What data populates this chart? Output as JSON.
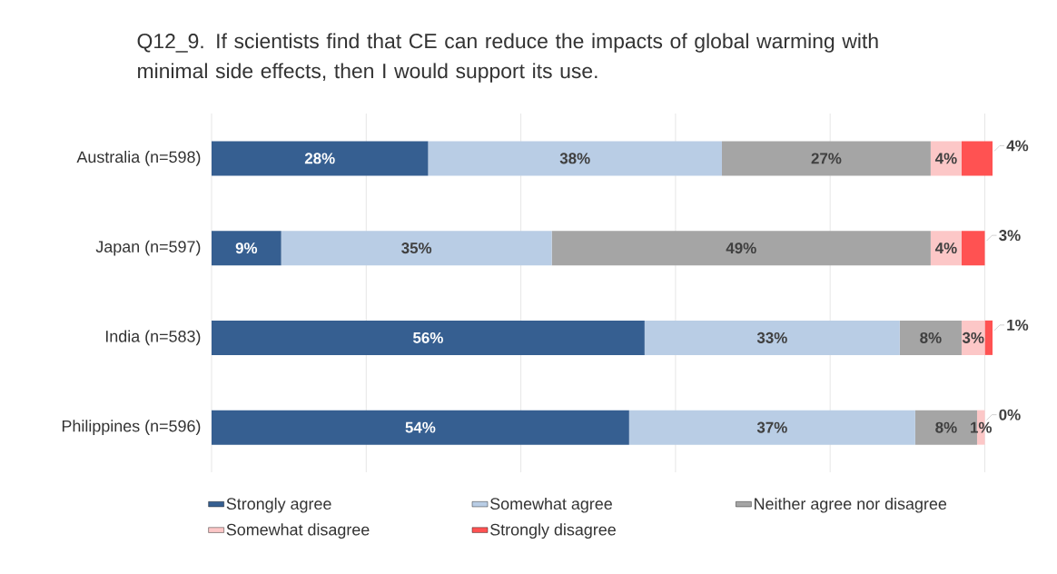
{
  "chart_data": {
    "type": "bar",
    "orientation": "horizontal",
    "stacked": true,
    "title": "Q12_9. If scientists find that CE can reduce the impacts of global warming with minimal side effects, then I would support its use.",
    "categories": [
      "Australia (n=598)",
      "Japan (n=597)",
      "India (n=583)",
      "Philippines (n=596)"
    ],
    "series": [
      {
        "name": "Strongly agree",
        "color": "#365f91",
        "values": [
          28,
          9,
          56,
          54
        ],
        "value_labels": [
          "28%",
          "9%",
          "56%",
          "54%"
        ]
      },
      {
        "name": "Somewhat agree",
        "color": "#b9cde5",
        "values": [
          38,
          35,
          33,
          37
        ],
        "value_labels": [
          "38%",
          "35%",
          "33%",
          "37%"
        ]
      },
      {
        "name": "Neither agree nor disagree",
        "color": "#a5a5a5",
        "values": [
          27,
          49,
          8,
          8
        ],
        "value_labels": [
          "27%",
          "49%",
          "8%",
          "8%"
        ]
      },
      {
        "name": "Somewhat disagree",
        "color": "#fcc7c7",
        "values": [
          4,
          4,
          3,
          1
        ],
        "value_labels": [
          "4%",
          "4%",
          "3%",
          "1%"
        ]
      },
      {
        "name": "Strongly disagree",
        "color": "#ff5252",
        "values": [
          4,
          3,
          1,
          0
        ],
        "value_labels": [
          "4%",
          "3%",
          "1%",
          "0%"
        ]
      }
    ],
    "xlim": [
      0,
      101
    ],
    "xticks": [
      {
        "value": 0,
        "label": null
      },
      {
        "value": 20,
        "label": null
      },
      {
        "value": 40,
        "label": null
      },
      {
        "value": 60,
        "label": null
      },
      {
        "value": 80,
        "label": null
      },
      {
        "value": 100,
        "label": null
      }
    ],
    "tick_labels": "y",
    "grid": "x",
    "legend": "bottom"
  }
}
